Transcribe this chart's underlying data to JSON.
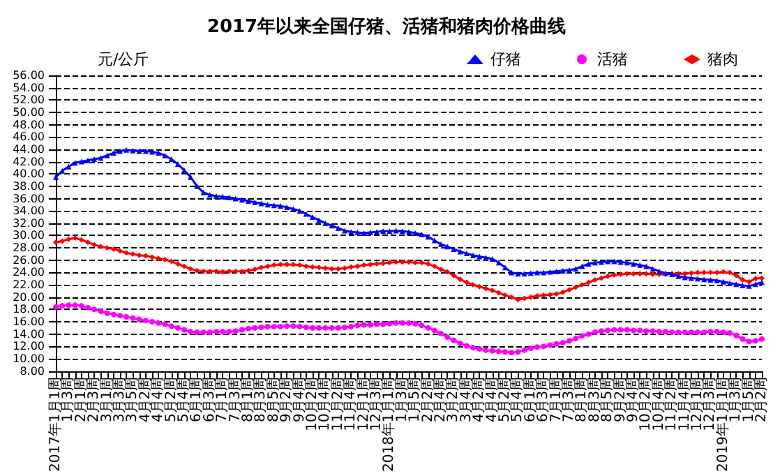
{
  "chart_data": {
    "type": "line",
    "title": "2017年以来全国仔猪、活猪和猪肉价格曲线",
    "ylabel": "元/公斤",
    "categories": [
      "2017年1月1周",
      null,
      "1月3周",
      null,
      "2月1周",
      null,
      "2月3周",
      null,
      "3月1周",
      null,
      "3月3周",
      null,
      "3月5周",
      null,
      "4月2周",
      null,
      "4月4周",
      null,
      "5月2周",
      null,
      "5月4周",
      null,
      "6月1周",
      null,
      "6月3周",
      null,
      "7月1周",
      null,
      "7月3周",
      null,
      "8月1周",
      null,
      "8月3周",
      null,
      "8月5周",
      null,
      "9月2周",
      null,
      "9月4周",
      null,
      "10月2周",
      null,
      "10月4周",
      null,
      "11月2周",
      null,
      "11月4周",
      null,
      "12月1周",
      null,
      "12月3周",
      null,
      "2018年1月1周",
      null,
      "1月3周",
      null,
      "1月5周",
      null,
      "2月2周",
      null,
      "2月4周",
      null,
      "3月2周",
      null,
      "3月4周",
      null,
      "4月2周",
      null,
      "4月4周",
      null,
      "5月2周",
      null,
      "5月4周",
      null,
      "6月1周",
      null,
      "6月3周",
      null,
      "7月1周",
      null,
      "7月3周",
      null,
      "8月1周",
      null,
      "8月3周",
      null,
      "8月5周",
      null,
      "9月2周",
      null,
      "9月4周",
      null,
      "10月2周",
      null,
      "10月4周",
      null,
      "11月2周",
      null,
      "11月4周",
      null,
      "12月1周",
      null,
      "12月3周",
      null,
      "2019年1月1周",
      null,
      "1月3周",
      null,
      "1月5周",
      null,
      "2月2周"
    ],
    "series": [
      {
        "name": "仔猪",
        "color": "#0000ff",
        "marker": "triangle",
        "values": [
          39.5,
          40.5,
          41.2,
          41.8,
          42.0,
          42.2,
          42.4,
          42.6,
          43.0,
          43.4,
          43.7,
          43.9,
          43.8,
          43.7,
          43.7,
          43.6,
          43.4,
          43.0,
          42.4,
          41.6,
          40.6,
          39.5,
          38.0,
          37.0,
          36.6,
          36.4,
          36.3,
          36.2,
          36.0,
          35.8,
          35.6,
          35.4,
          35.2,
          35.0,
          34.9,
          34.8,
          34.6,
          34.3,
          34.0,
          33.5,
          33.0,
          32.5,
          32.0,
          31.6,
          31.2,
          30.8,
          30.6,
          30.5,
          30.4,
          30.5,
          30.6,
          30.7,
          30.7,
          30.8,
          30.7,
          30.6,
          30.4,
          30.2,
          29.8,
          29.2,
          28.6,
          28.2,
          27.8,
          27.4,
          27.1,
          26.8,
          26.6,
          26.4,
          26.2,
          25.6,
          24.8,
          24.0,
          23.8,
          23.8,
          23.9,
          24.0,
          24.0,
          24.1,
          24.2,
          24.3,
          24.4,
          24.6,
          25.0,
          25.4,
          25.6,
          25.7,
          25.8,
          25.8,
          25.7,
          25.6,
          25.4,
          25.2,
          25.0,
          24.6,
          24.2,
          23.9,
          23.7,
          23.4,
          23.2,
          23.1,
          23.0,
          22.9,
          22.8,
          22.7,
          22.5,
          22.3,
          22.1,
          21.9,
          21.8,
          22.1,
          22.4
        ]
      },
      {
        "name": "活猪",
        "color": "#ff00ff",
        "marker": "circle",
        "values": [
          18.4,
          18.6,
          18.7,
          18.7,
          18.6,
          18.3,
          18.0,
          17.7,
          17.4,
          17.2,
          17.0,
          16.8,
          16.6,
          16.4,
          16.2,
          16.0,
          15.8,
          15.6,
          15.3,
          15.0,
          14.7,
          14.4,
          14.3,
          14.3,
          14.3,
          14.4,
          14.4,
          14.4,
          14.5,
          14.7,
          14.9,
          15.0,
          15.1,
          15.2,
          15.2,
          15.2,
          15.3,
          15.3,
          15.2,
          15.1,
          15.0,
          15.0,
          15.0,
          15.0,
          15.0,
          15.1,
          15.2,
          15.4,
          15.5,
          15.5,
          15.6,
          15.6,
          15.7,
          15.8,
          15.8,
          15.8,
          15.7,
          15.4,
          15.0,
          14.6,
          14.1,
          13.5,
          13.0,
          12.5,
          12.1,
          11.8,
          11.6,
          11.4,
          11.3,
          11.2,
          11.1,
          11.0,
          11.1,
          11.4,
          11.7,
          11.9,
          12.0,
          12.2,
          12.4,
          12.6,
          12.9,
          13.3,
          13.7,
          14.0,
          14.3,
          14.5,
          14.6,
          14.7,
          14.7,
          14.7,
          14.6,
          14.6,
          14.5,
          14.5,
          14.4,
          14.4,
          14.3,
          14.3,
          14.3,
          14.3,
          14.3,
          14.3,
          14.4,
          14.4,
          14.3,
          14.2,
          13.8,
          13.2,
          12.8,
          12.9,
          13.2
        ]
      },
      {
        "name": "猪肉",
        "color": "#ff0000",
        "marker": "diamond",
        "values": [
          28.9,
          29.1,
          29.4,
          29.6,
          29.3,
          28.9,
          28.5,
          28.2,
          28.0,
          27.8,
          27.5,
          27.2,
          27.0,
          26.8,
          26.7,
          26.5,
          26.3,
          26.1,
          25.8,
          25.4,
          25.0,
          24.6,
          24.3,
          24.2,
          24.2,
          24.2,
          24.1,
          24.2,
          24.2,
          24.2,
          24.3,
          24.5,
          24.8,
          25.0,
          25.2,
          25.3,
          25.3,
          25.3,
          25.2,
          25.0,
          24.9,
          24.8,
          24.7,
          24.6,
          24.6,
          24.7,
          24.9,
          25.0,
          25.2,
          25.3,
          25.4,
          25.5,
          25.6,
          25.7,
          25.7,
          25.7,
          25.6,
          25.6,
          25.4,
          25.0,
          24.5,
          24.1,
          23.5,
          22.9,
          22.4,
          22.0,
          21.7,
          21.4,
          21.1,
          20.7,
          20.3,
          20.0,
          19.6,
          19.8,
          20.0,
          20.2,
          20.3,
          20.4,
          20.5,
          20.8,
          21.2,
          21.6,
          22.0,
          22.4,
          22.8,
          23.1,
          23.4,
          23.6,
          23.7,
          23.8,
          23.8,
          23.8,
          23.8,
          23.7,
          23.7,
          23.7,
          23.8,
          23.8,
          23.8,
          23.9,
          24.0,
          24.0,
          24.0,
          24.0,
          24.1,
          24.0,
          23.5,
          22.8,
          22.5,
          23.0,
          23.1
        ]
      }
    ],
    "ylim": [
      8,
      56
    ],
    "yticks": [
      {
        "value": 8,
        "label": "8.00"
      },
      {
        "value": 10,
        "label": "10.00"
      },
      {
        "value": 12,
        "label": "12.00"
      },
      {
        "value": 14,
        "label": "14.00"
      },
      {
        "value": 16,
        "label": "16.00"
      },
      {
        "value": 18,
        "label": "18.00"
      },
      {
        "value": 20,
        "label": "20.00"
      },
      {
        "value": 22,
        "label": "22.00"
      },
      {
        "value": 24,
        "label": "24.00"
      },
      {
        "value": 26,
        "label": "26.00"
      },
      {
        "value": 28,
        "label": "28.00"
      },
      {
        "value": 30,
        "label": "30.00"
      },
      {
        "value": 32,
        "label": "32.00"
      },
      {
        "value": 34,
        "label": "34.00"
      },
      {
        "value": 36,
        "label": "36.00"
      },
      {
        "value": 38,
        "label": "38.00"
      },
      {
        "value": 40,
        "label": "40.00"
      },
      {
        "value": 42,
        "label": "42.00"
      },
      {
        "value": 44,
        "label": "44.00"
      },
      {
        "value": 46,
        "label": "46.00"
      },
      {
        "value": 48,
        "label": "48.00"
      },
      {
        "value": 50,
        "label": "50.00"
      },
      {
        "value": 52,
        "label": "52.00"
      },
      {
        "value": 54,
        "label": "54.00"
      },
      {
        "value": 56,
        "label": "56.00"
      }
    ],
    "grid": "y",
    "legend": "top right"
  }
}
